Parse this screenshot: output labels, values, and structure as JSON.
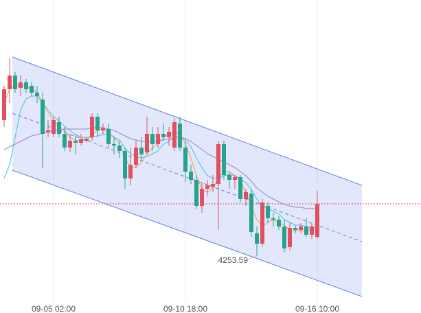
{
  "chart_data": {
    "type": "candlestick",
    "categories": [
      null,
      null,
      null,
      null,
      null,
      null,
      null,
      null,
      null,
      "09-05 02:00",
      null,
      null,
      null,
      null,
      null,
      null,
      null,
      null,
      null,
      null,
      null,
      null,
      null,
      null,
      null,
      null,
      null,
      null,
      null,
      null,
      null,
      null,
      null,
      "09-10 18:00",
      null,
      null,
      null,
      null,
      null,
      null,
      null,
      null,
      null,
      null,
      null,
      null,
      null,
      null,
      null,
      null,
      null,
      null,
      null,
      null,
      null,
      null,
      null,
      "09-16 10:00"
    ],
    "open": [
      4352.5,
      4375,
      4385,
      4376,
      4380,
      4377.5,
      4372.5,
      4367.5,
      4343.5,
      4342.5,
      4351,
      4342.5,
      4332.5,
      4337.5,
      4336,
      4337.5,
      4340,
      4355,
      4345,
      4346,
      4335,
      4334,
      4330,
      4310,
      4320,
      4332.5,
      4329,
      4342.5,
      4335,
      4342.5,
      4340,
      4332.5,
      4350,
      4332.5,
      4315,
      4309,
      4290,
      4302.5,
      4304,
      4306,
      4335,
      4312.5,
      4309,
      4311,
      4295,
      4299,
      4270,
      4262.5,
      4290,
      4281,
      4280,
      4275,
      4260,
      4274,
      4272.5,
      4275,
      4269,
      4267.5
    ],
    "high": [
      4377.5,
      4397.5,
      4387.5,
      4385,
      4382.5,
      4380,
      4377.5,
      4372.5,
      4352.5,
      4355,
      4355,
      4347.5,
      4342.5,
      4342.5,
      4342.5,
      4340,
      4357.5,
      4357.5,
      4350,
      4350,
      4340,
      4337.5,
      4332.5,
      4332.5,
      4337.5,
      4340,
      4355,
      4347.5,
      4347.5,
      4350,
      4347.5,
      4354,
      4355,
      4337.5,
      4320,
      4312.5,
      4307.5,
      4309,
      4312.5,
      4337.5,
      4337.5,
      4315,
      4312.5,
      4312.5,
      4302.5,
      4302.5,
      4275,
      4295,
      4292.5,
      4285,
      4282.5,
      4280,
      4277.5,
      4276,
      4277.5,
      4281,
      4277.5,
      4301
    ],
    "low": [
      4347.5,
      4365,
      4372.5,
      4370,
      4372.5,
      4370,
      4365,
      4317.5,
      4340,
      4340,
      4340,
      4330,
      4329,
      4327.5,
      4334,
      4336,
      4337.5,
      4340,
      4342.5,
      4332.5,
      4327.5,
      4325,
      4302.5,
      4305,
      4317.5,
      4322.5,
      4327.5,
      4330,
      4332.5,
      4337.5,
      4334,
      4330,
      4330,
      4307.5,
      4306,
      4287.5,
      4285,
      4297.5,
      4300,
      4272.5,
      4309,
      4302.5,
      4302.5,
      4292.5,
      4290,
      4267.5,
      4253.59,
      4260,
      4277.5,
      4275,
      4272.5,
      4256,
      4257.5,
      4270,
      4270,
      4267.5,
      4266,
      4266
    ],
    "close": [
      4375,
      4385,
      4375,
      4380,
      4375,
      4372.5,
      4370,
      4342.5,
      4345,
      4352.5,
      4342.5,
      4332.5,
      4337.5,
      4336,
      4338.5,
      4339,
      4355,
      4345,
      4346.5,
      4335,
      4334,
      4330,
      4310,
      4320,
      4332.5,
      4327.5,
      4342.5,
      4335,
      4342.5,
      4340,
      4344,
      4351,
      4332.5,
      4315,
      4309,
      4290,
      4302.5,
      4305,
      4306,
      4335,
      4312.5,
      4309,
      4311,
      4295,
      4300,
      4271,
      4262.5,
      4292.5,
      4281,
      4280,
      4275,
      4259,
      4274,
      4272.5,
      4275,
      4269,
      4275,
      4291.5
    ],
    "up_color": "#e0505f",
    "down_color": "#26a48b",
    "series": [
      {
        "color": "#f39c4a",
        "values": [
          4365,
          4375,
          4378,
          4378,
          4377,
          4375,
          4373,
          4365,
          4358,
          4352,
          4348,
          4345,
          4340,
          4338,
          4337,
          4338,
          4342,
          4345,
          4346,
          4344,
          4340,
          4335,
          4325,
          4318,
          4318,
          4322,
          4328,
          4332,
          4336,
          4340,
          4342,
          4344,
          4342,
          4335,
          4325,
          4312,
          4302,
          4300,
          4303,
          4310,
          4315,
          4315,
          4312,
          4308,
          4300,
          4290,
          4280,
          4275,
          4278,
          4280,
          4278,
          4276,
          4272,
          4272,
          4272,
          4272,
          4273,
          4275
        ]
      },
      {
        "color": "#3cc6d6",
        "values": [
          4310,
          4320,
          4340,
          4360,
          4368,
          4370,
          4370,
          4365,
          4360,
          4355,
          4352,
          4348,
          4345,
          4342,
          4340,
          4340,
          4340,
          4341,
          4342,
          4342,
          4340,
          4338,
          4332,
          4328,
          4326,
          4325,
          4326,
          4328,
          4330,
          4335,
          4337,
          4340,
          4340,
          4338,
          4333,
          4325,
          4318,
          4312,
          4310,
          4310,
          4312,
          4313,
          4312,
          4310,
          4307,
          4302,
          4295,
          4290,
          4288,
          4286,
          4284,
          4280,
          4278,
          4276,
          4276,
          4275,
          4274,
          4274
        ]
      },
      {
        "color": "#9b7fd6",
        "values": [
          4331,
          4333,
          4335,
          4337,
          4339,
          4341,
          4342,
          4343,
          4344,
          4345,
          4345,
          4346,
          4346,
          4346,
          4346,
          4346,
          4347,
          4347,
          4347,
          4346,
          4345,
          4343,
          4341,
          4339,
          4338,
          4337,
          4337,
          4337,
          4337,
          4338,
          4339,
          4340,
          4340,
          4339,
          4337,
          4334,
          4331,
          4328,
          4326,
          4324,
          4322,
          4320,
          4318,
          4315,
          4312,
          4308,
          4303,
          4300,
          4297,
          4295,
          4293,
          4291,
          4290,
          4289,
          4289,
          4288,
          4288,
          4288
        ]
      }
    ],
    "current_price": 4291.5,
    "current_price_color": "#e0505f",
    "low_label": "4253.59",
    "ylim": [
      4220,
      4440
    ],
    "grid": true
  }
}
